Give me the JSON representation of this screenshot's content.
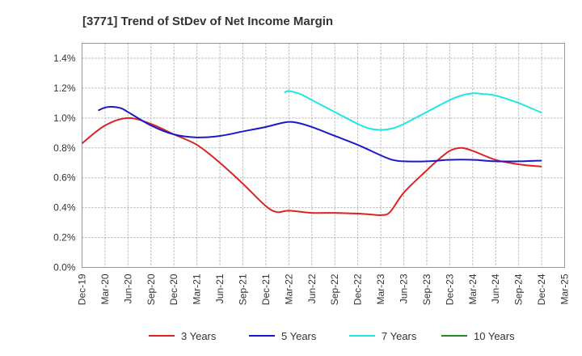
{
  "chart_data": {
    "type": "line",
    "title": "[3771]  Trend of StDev of Net Income Margin",
    "xlabel": "",
    "ylabel": "",
    "x_ticks": [
      "Dec-19",
      "Mar-20",
      "Jun-20",
      "Sep-20",
      "Dec-20",
      "Mar-21",
      "Jun-21",
      "Sep-21",
      "Dec-21",
      "Mar-22",
      "Jun-22",
      "Sep-22",
      "Dec-22",
      "Mar-23",
      "Jun-23",
      "Sep-23",
      "Dec-23",
      "Mar-24",
      "Jun-24",
      "Sep-24",
      "Dec-24",
      "Mar-25"
    ],
    "y_ticks": [
      "0.0%",
      "0.2%",
      "0.4%",
      "0.6%",
      "0.8%",
      "1.0%",
      "1.2%",
      "1.4%"
    ],
    "ylim": [
      0,
      1.5
    ],
    "grid": true,
    "legend_position": "bottom",
    "series": [
      {
        "name": "3 Years",
        "color": "#dd2222",
        "points": [
          [
            0,
            0.83
          ],
          [
            1,
            0.95
          ],
          [
            2,
            1.0
          ],
          [
            3,
            0.96
          ],
          [
            4,
            0.89
          ],
          [
            5,
            0.82
          ],
          [
            6,
            0.7
          ],
          [
            7,
            0.56
          ],
          [
            8,
            0.41
          ],
          [
            8.5,
            0.37
          ],
          [
            9,
            0.38
          ],
          [
            10,
            0.365
          ],
          [
            11,
            0.365
          ],
          [
            12,
            0.36
          ],
          [
            12.5,
            0.355
          ],
          [
            13,
            0.35
          ],
          [
            13.4,
            0.37
          ],
          [
            14,
            0.5
          ],
          [
            15,
            0.65
          ],
          [
            15.5,
            0.72
          ],
          [
            16,
            0.78
          ],
          [
            16.5,
            0.8
          ],
          [
            17,
            0.78
          ],
          [
            18,
            0.72
          ],
          [
            19,
            0.69
          ],
          [
            20,
            0.675
          ]
        ]
      },
      {
        "name": "5 Years",
        "color": "#1a1acc",
        "points": [
          [
            0.7,
            1.05
          ],
          [
            1,
            1.07
          ],
          [
            1.3,
            1.075
          ],
          [
            1.7,
            1.065
          ],
          [
            2,
            1.04
          ],
          [
            3,
            0.95
          ],
          [
            4,
            0.89
          ],
          [
            5,
            0.87
          ],
          [
            6,
            0.88
          ],
          [
            7,
            0.91
          ],
          [
            8,
            0.94
          ],
          [
            8.8,
            0.97
          ],
          [
            9.3,
            0.97
          ],
          [
            10,
            0.94
          ],
          [
            11,
            0.88
          ],
          [
            12,
            0.82
          ],
          [
            13,
            0.75
          ],
          [
            13.5,
            0.72
          ],
          [
            14,
            0.71
          ],
          [
            15,
            0.71
          ],
          [
            16,
            0.72
          ],
          [
            17,
            0.72
          ],
          [
            18,
            0.71
          ],
          [
            19,
            0.71
          ],
          [
            20,
            0.715
          ]
        ]
      },
      {
        "name": "7 Years",
        "color": "#22e6e6",
        "points": [
          [
            8.8,
            1.17
          ],
          [
            9,
            1.18
          ],
          [
            9.5,
            1.16
          ],
          [
            10,
            1.12
          ],
          [
            11,
            1.04
          ],
          [
            12,
            0.96
          ],
          [
            12.5,
            0.93
          ],
          [
            13,
            0.92
          ],
          [
            13.5,
            0.93
          ],
          [
            14,
            0.96
          ],
          [
            15,
            1.04
          ],
          [
            16,
            1.12
          ],
          [
            16.5,
            1.15
          ],
          [
            17,
            1.165
          ],
          [
            17.5,
            1.16
          ],
          [
            18,
            1.15
          ],
          [
            19,
            1.1
          ],
          [
            20,
            1.035
          ]
        ]
      },
      {
        "name": "10 Years",
        "color": "#228822",
        "points": []
      }
    ]
  }
}
